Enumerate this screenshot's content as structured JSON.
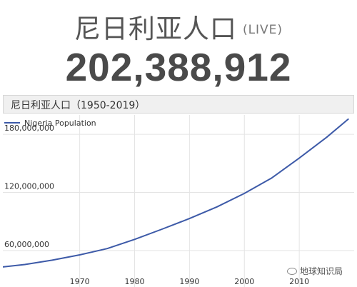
{
  "header": {
    "title": "尼日利亚人口",
    "live_label": "(LIVE)",
    "counter": "202,388,912"
  },
  "chart_title": "尼日利亚人口（1950-2019）",
  "watermark": "地球知识局",
  "chart_data": {
    "type": "line",
    "title": "尼日利亚人口（1950-2019）",
    "xlabel": "",
    "ylabel": "",
    "xlim": [
      1956,
      2020
    ],
    "ylim": [
      40000000,
      200000000
    ],
    "x_ticks": [
      1970,
      1980,
      1990,
      2000,
      2010
    ],
    "y_ticks": [
      {
        "value": 60000000,
        "label": "60,000,000"
      },
      {
        "value": 120000000,
        "label": "120,000,000"
      },
      {
        "value": 180000000,
        "label": "180,000,000"
      }
    ],
    "grid": true,
    "legend": "top-left",
    "series": [
      {
        "name": "Nigeria Population",
        "color": "#3d5aa8",
        "x": [
          1956,
          1960,
          1965,
          1970,
          1975,
          1980,
          1985,
          1990,
          1995,
          2000,
          2005,
          2010,
          2015,
          2019
        ],
        "values": [
          43000000,
          45500000,
          50000000,
          55500000,
          62000000,
          71500000,
          82000000,
          93000000,
          105000000,
          119000000,
          135000000,
          155500000,
          177000000,
          196000000
        ]
      }
    ]
  }
}
